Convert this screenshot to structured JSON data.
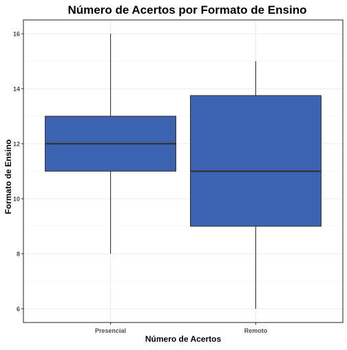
{
  "chart_data": {
    "type": "box",
    "title": "Número de Acertos por Formato de Ensino",
    "xlabel": "Número de Acertos",
    "ylabel": "Formato de Ensino",
    "categories": [
      "Presencial",
      "Remoto"
    ],
    "boxes": [
      {
        "category": "Presencial",
        "min": 8,
        "q1": 11,
        "median": 12,
        "q3": 13,
        "max": 16
      },
      {
        "category": "Remoto",
        "min": 6,
        "q1": 9,
        "median": 11,
        "q3": 13.75,
        "max": 15
      }
    ],
    "ylim": [
      5.5,
      16.5
    ],
    "yticks": [
      6,
      8,
      10,
      12,
      14,
      16
    ],
    "grid": true,
    "colors": {
      "box_fill": "#3B63B2",
      "box_stroke": "#333333",
      "whisker": "#333333",
      "grid_major": "#EBEBEB",
      "grid_minor": "#F4F4F4",
      "panel_border": "#333333",
      "tick_label": "#4D4D4D",
      "title": "#000000"
    }
  }
}
